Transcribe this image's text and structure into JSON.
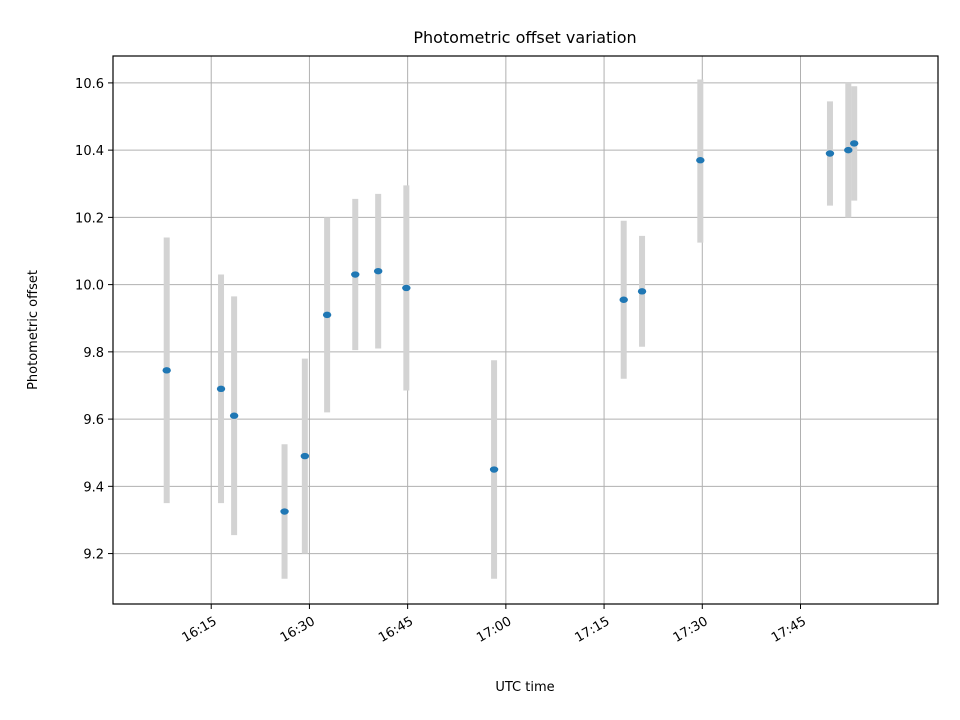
{
  "chart_data": {
    "type": "scatter",
    "title": "Photometric offset variation",
    "xlabel": "UTC time",
    "ylabel": "Photometric offset",
    "x_axis": {
      "type": "time",
      "range": [
        "16:00",
        "18:06"
      ],
      "ticks": [
        "16:15",
        "16:30",
        "16:45",
        "17:00",
        "17:15",
        "17:30",
        "17:45"
      ]
    },
    "y_axis": {
      "range": [
        9.05,
        10.68
      ],
      "ticks": [
        "9.2",
        "9.4",
        "9.6",
        "9.8",
        "10.0",
        "10.2",
        "10.4",
        "10.6"
      ]
    },
    "grid": true,
    "colors": {
      "marker": "#1f77b4",
      "errorbar": "#d3d3d3",
      "grid": "#b0b0b0"
    },
    "points": [
      {
        "time": "16:08.2",
        "y": 9.745,
        "ylow": 9.35,
        "yhigh": 10.14
      },
      {
        "time": "16:16.5",
        "y": 9.69,
        "ylow": 9.35,
        "yhigh": 10.03
      },
      {
        "time": "16:18.5",
        "y": 9.61,
        "ylow": 9.255,
        "yhigh": 9.965
      },
      {
        "time": "16:26.2",
        "y": 9.325,
        "ylow": 9.125,
        "yhigh": 9.525
      },
      {
        "time": "16:29.3",
        "y": 9.49,
        "ylow": 9.2,
        "yhigh": 9.78
      },
      {
        "time": "16:32.7",
        "y": 9.91,
        "ylow": 9.62,
        "yhigh": 10.2
      },
      {
        "time": "16:37.0",
        "y": 10.03,
        "ylow": 9.805,
        "yhigh": 10.255
      },
      {
        "time": "16:40.5",
        "y": 10.04,
        "ylow": 9.81,
        "yhigh": 10.27
      },
      {
        "time": "16:44.8",
        "y": 9.99,
        "ylow": 9.685,
        "yhigh": 10.295
      },
      {
        "time": "16:58.2",
        "y": 9.45,
        "ylow": 9.125,
        "yhigh": 9.775
      },
      {
        "time": "17:18.0",
        "y": 9.955,
        "ylow": 9.72,
        "yhigh": 10.19
      },
      {
        "time": "17:20.8",
        "y": 9.98,
        "ylow": 9.815,
        "yhigh": 10.145
      },
      {
        "time": "17:29.7",
        "y": 10.37,
        "ylow": 10.125,
        "yhigh": 10.61
      },
      {
        "time": "17:49.5",
        "y": 10.39,
        "ylow": 10.235,
        "yhigh": 10.545
      },
      {
        "time": "17:52.3",
        "y": 10.4,
        "ylow": 10.2,
        "yhigh": 10.6
      },
      {
        "time": "17:53.2",
        "y": 10.42,
        "ylow": 10.25,
        "yhigh": 10.59
      }
    ]
  }
}
